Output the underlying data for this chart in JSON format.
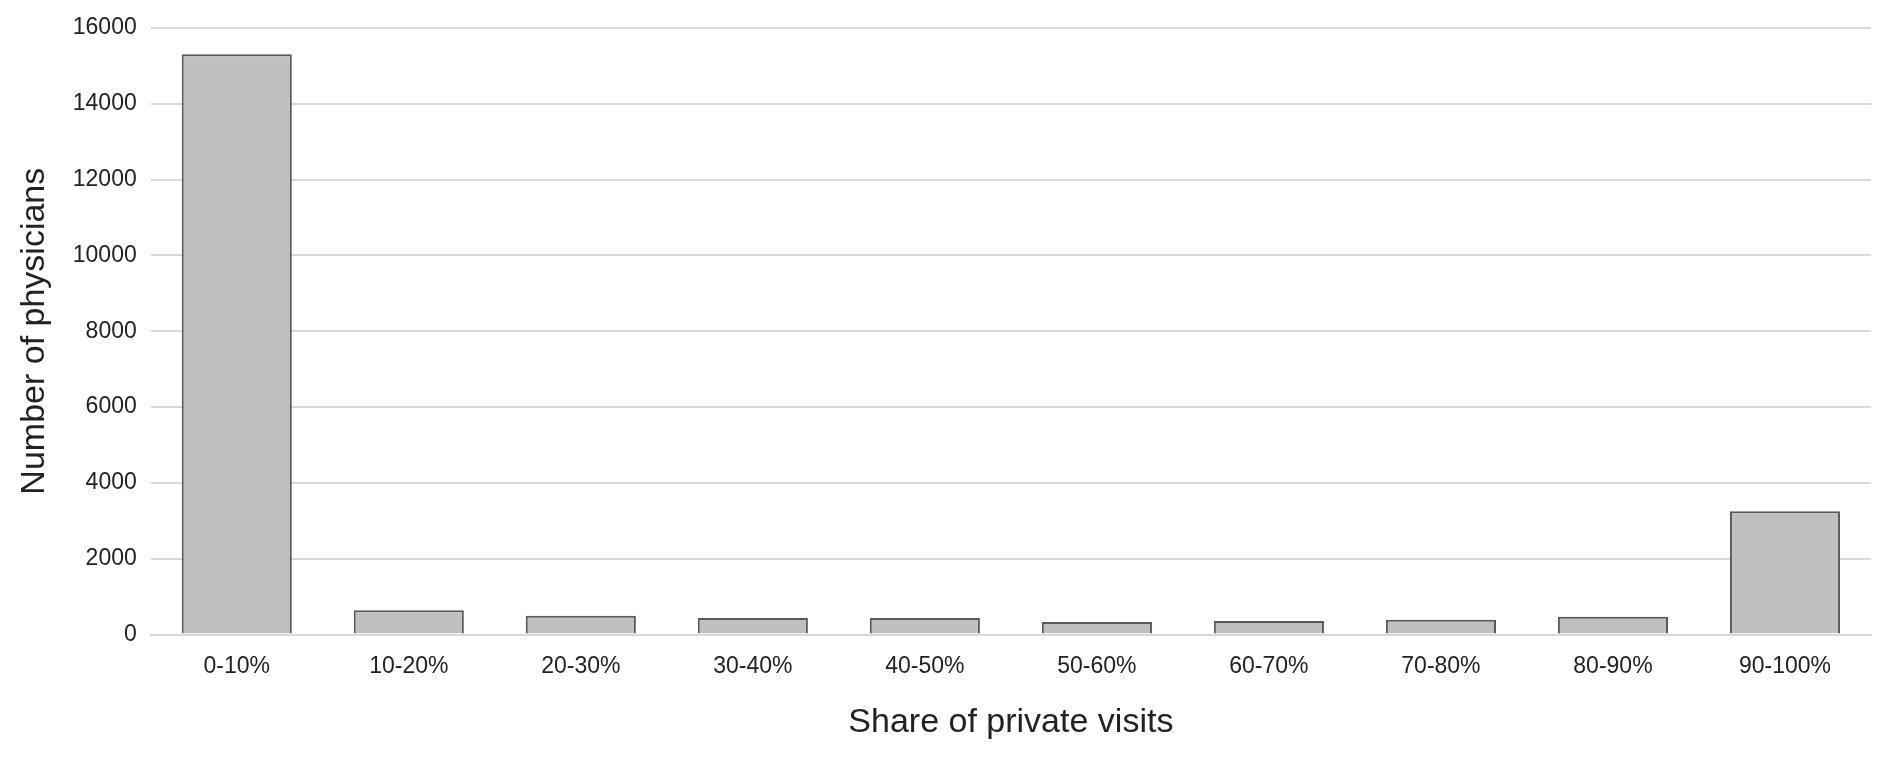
{
  "chart_data": {
    "type": "bar",
    "xlabel": "Share of private visits",
    "ylabel": "Number of physicians",
    "categories": [
      "0-10%",
      "10-20%",
      "20-30%",
      "30-40%",
      "40-50%",
      "50-60%",
      "60-70%",
      "70-80%",
      "80-90%",
      "90-100%"
    ],
    "values": [
      15300,
      640,
      500,
      440,
      440,
      330,
      360,
      390,
      470,
      3250
    ],
    "color": "#bfbfbf",
    "ylim": [
      0,
      16000
    ],
    "yticks": [
      0,
      2000,
      4000,
      6000,
      8000,
      10000,
      12000,
      14000,
      16000
    ],
    "grid": "y",
    "legend": false
  }
}
